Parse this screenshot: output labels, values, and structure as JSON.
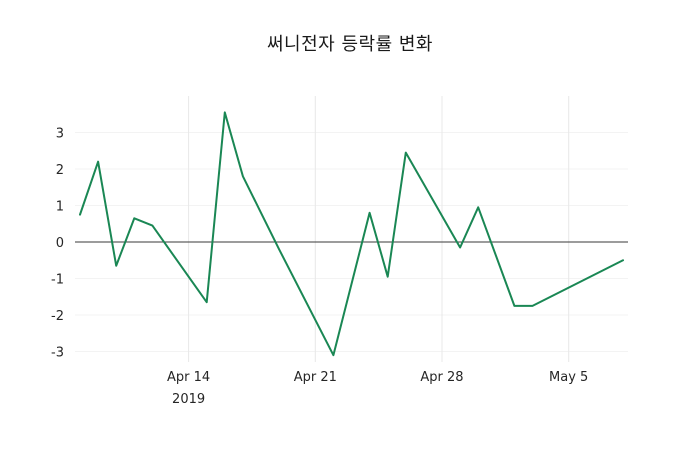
{
  "chart": {
    "line_color": "#1a8754",
    "zero_line_color": "#3a3a3a",
    "vgrid_color": "#e8e8e8",
    "hgrid_color": "#f3f3f3",
    "background": "#ffffff",
    "tick_color": "#262626"
  },
  "chart_data": {
    "type": "line",
    "title": "써니전자 등락률 변화",
    "xlabel": "",
    "ylabel": "",
    "legend": "none",
    "grid": true,
    "ylim": [
      -3.6,
      4.0
    ],
    "series_name": "등락률",
    "x": [
      "Apr 8",
      "Apr 9",
      "Apr 10",
      "Apr 11",
      "Apr 12",
      "Apr 15",
      "Apr 16",
      "Apr 17",
      "Apr 18",
      "Apr 19",
      "Apr 22",
      "Apr 23",
      "Apr 24",
      "Apr 25",
      "Apr 26",
      "Apr 29",
      "Apr 30",
      "May 2",
      "May 3",
      "May 7",
      "May 8"
    ],
    "day_offsets": [
      0,
      1,
      2,
      3,
      4,
      7,
      8,
      9,
      10,
      11,
      14,
      15,
      16,
      17,
      18,
      21,
      22,
      24,
      25,
      29,
      30
    ],
    "values": [
      0.75,
      2.2,
      -0.65,
      0.65,
      0.45,
      -1.65,
      3.55,
      1.8,
      0.8,
      -0.2,
      -3.1,
      -1.15,
      0.8,
      -0.95,
      2.45,
      -0.15,
      0.95,
      -1.75,
      -1.75,
      -0.75,
      -0.5
    ],
    "y_ticks": [
      3,
      2,
      1,
      0,
      -1,
      -2,
      -3
    ],
    "x_ticks": [
      {
        "label": "Apr 14",
        "sublabel": "2019",
        "day": 6
      },
      {
        "label": "Apr 21",
        "sublabel": "",
        "day": 13
      },
      {
        "label": "Apr 28",
        "sublabel": "",
        "day": 20
      },
      {
        "label": "May 5",
        "sublabel": "",
        "day": 27
      }
    ]
  }
}
